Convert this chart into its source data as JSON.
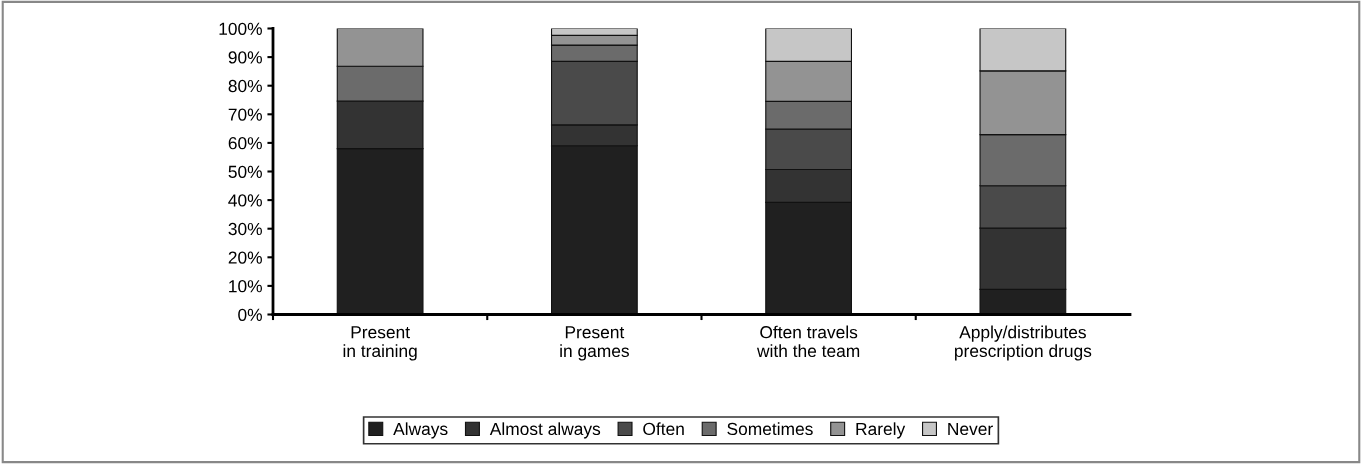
{
  "chart_data": {
    "type": "bar",
    "stacked": true,
    "categories": [
      "Present\nin training",
      "Present\nin games",
      "Often travels\nwith the team",
      "Apply/distributes\nprescription drugs"
    ],
    "series": [
      {
        "name": "Always",
        "color": "#202020",
        "values": [
          58.0,
          59.0,
          39.2,
          8.8
        ]
      },
      {
        "name": "Almost always",
        "color": "#333333",
        "values": [
          16.6,
          7.3,
          11.5,
          21.4
        ]
      },
      {
        "name": "Often",
        "color": "#4a4a4a",
        "values": [
          null,
          22.2,
          14.1,
          14.8
        ]
      },
      {
        "name": "Sometimes",
        "color": "#6b6b6b",
        "values": [
          12.2,
          5.7,
          9.7,
          17.9
        ]
      },
      {
        "name": "Rarely",
        "color": "#939393",
        "values": [
          13.2,
          3.4,
          14.0,
          22.3
        ]
      },
      {
        "name": "Never",
        "color": "#c6c6c6",
        "values": [
          null,
          2.4,
          11.5,
          14.8
        ]
      }
    ],
    "ylim": [
      0,
      100
    ],
    "yticks": [
      {
        "value": 0,
        "label": "0%"
      },
      {
        "value": 10,
        "label": "10%"
      },
      {
        "value": 20,
        "label": "20%"
      },
      {
        "value": 30,
        "label": "30%"
      },
      {
        "value": 40,
        "label": "40%"
      },
      {
        "value": 50,
        "label": "50%"
      },
      {
        "value": 60,
        "label": "60%"
      },
      {
        "value": 70,
        "label": "70%"
      },
      {
        "value": 80,
        "label": "80%"
      },
      {
        "value": 90,
        "label": "90%"
      },
      {
        "value": 100,
        "label": "100%"
      }
    ],
    "grid": false,
    "legend": "bottom"
  }
}
